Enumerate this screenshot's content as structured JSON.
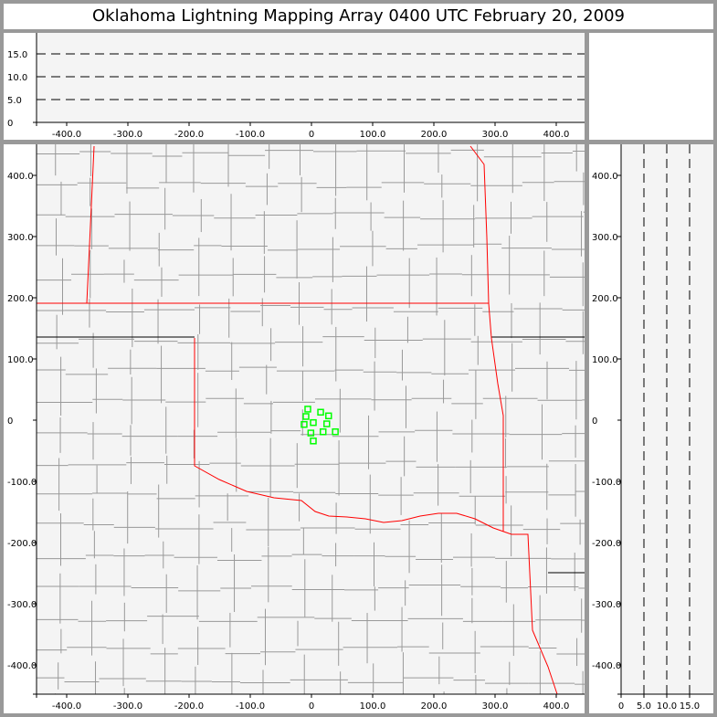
{
  "title": "Oklahoma Lightning Mapping Array   0400 UTC  February 20, 2009",
  "chart_data": [
    {
      "type": "scatter",
      "panel": "plan-view",
      "xlim": [
        -450,
        447
      ],
      "ylim": [
        -448,
        450
      ],
      "x_ticks": [
        "-400.0",
        "-300.0",
        "-200.0",
        "-100.0",
        "0",
        "100.0",
        "200.0",
        "300.0",
        "400.0"
      ],
      "y_ticks": [
        "400.0",
        "300.0",
        "200.0",
        "100.0",
        "0",
        "-100.0",
        "-200.0",
        "-300.0",
        "-400.0"
      ],
      "points": [
        [
          -6,
          18
        ],
        [
          15,
          13
        ],
        [
          28,
          7
        ],
        [
          -9,
          6
        ],
        [
          3,
          -4
        ],
        [
          -12,
          -7
        ],
        [
          25,
          -6
        ],
        [
          -1,
          -21
        ],
        [
          19,
          -19
        ],
        [
          39,
          -19
        ],
        [
          3,
          -34
        ]
      ],
      "point_color": "#00ff00",
      "state_border_color": "#ff0000",
      "county_line_color": "#999999",
      "background": "#f4f4f4"
    },
    {
      "type": "scatter",
      "panel": "east-west-altitude",
      "xlim": [
        -450,
        447
      ],
      "ylim": [
        0,
        20
      ],
      "x_ticks": [
        "-400.0",
        "-300.0",
        "-200.0",
        "-100.0",
        "0",
        "100.0",
        "200.0",
        "300.0",
        "400.0"
      ],
      "y_ticks": [
        "0",
        "5.0",
        "10.0",
        "15.0"
      ],
      "grid": "dashed at 5, 10, 15"
    },
    {
      "type": "scatter",
      "panel": "north-south-altitude",
      "xlim": [
        0,
        20
      ],
      "ylim": [
        -448,
        450
      ],
      "x_ticks": [
        "0",
        "5.0",
        "10.0",
        "15.0"
      ],
      "y_ticks": [
        "400.0",
        "300.0",
        "200.0",
        "100.0",
        "0",
        "-100.0",
        "-200.0",
        "-300.0",
        "-400.0"
      ],
      "grid": "dashed at 5, 10, 15"
    }
  ]
}
